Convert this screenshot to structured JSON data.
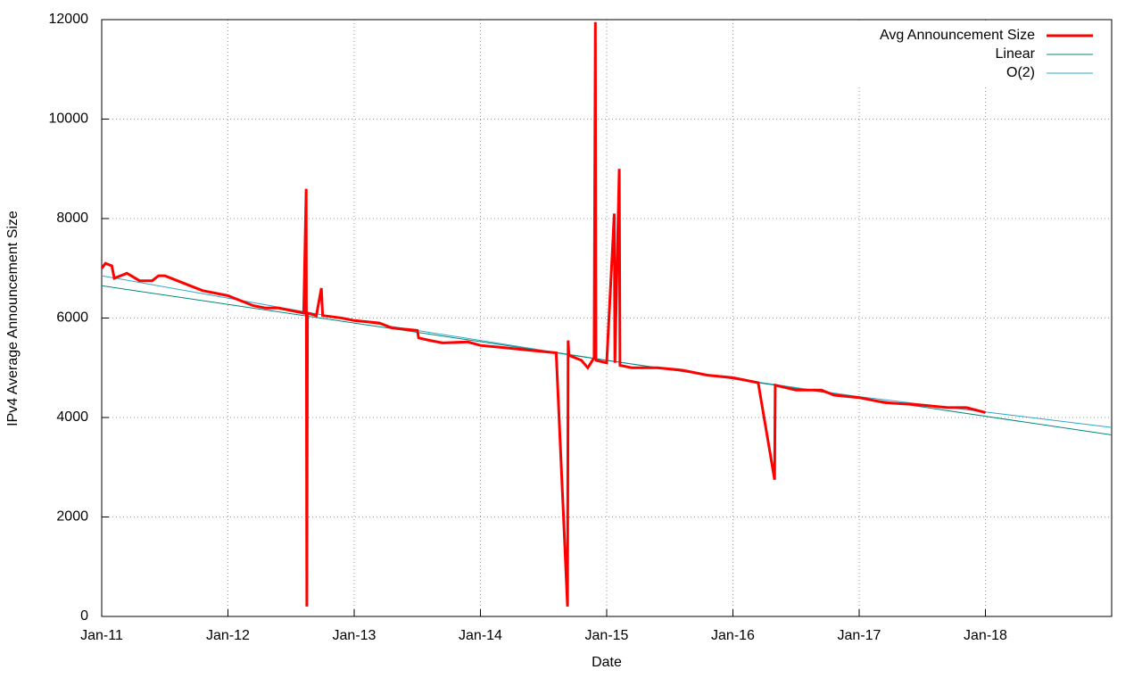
{
  "chart_data": {
    "type": "line",
    "xlabel": "Date",
    "ylabel": "IPv4 Average Announcement Size",
    "xlim": [
      2011,
      2019
    ],
    "xticks": [
      {
        "value": 2011,
        "label": "Jan-11"
      },
      {
        "value": 2012,
        "label": "Jan-12"
      },
      {
        "value": 2013,
        "label": "Jan-13"
      },
      {
        "value": 2014,
        "label": "Jan-14"
      },
      {
        "value": 2015,
        "label": "Jan-15"
      },
      {
        "value": 2016,
        "label": "Jan-16"
      },
      {
        "value": 2017,
        "label": "Jan-17"
      },
      {
        "value": 2018,
        "label": "Jan-18"
      }
    ],
    "ylim": [
      0,
      12000
    ],
    "yticks": [
      0,
      2000,
      4000,
      6000,
      8000,
      10000,
      12000
    ],
    "grid": true,
    "legend": "top-right",
    "series": [
      {
        "name": "Avg Announcement Size",
        "color": "#ff0000",
        "width": 3,
        "x": [
          2011.0,
          2011.03,
          2011.08,
          2011.1,
          2011.2,
          2011.3,
          2011.4,
          2011.45,
          2011.5,
          2011.6,
          2011.7,
          2011.8,
          2011.9,
          2012.0,
          2012.1,
          2012.2,
          2012.3,
          2012.4,
          2012.5,
          2012.6,
          2012.62,
          2012.625,
          2012.63,
          2012.7,
          2012.74,
          2012.75,
          2012.9,
          2013.0,
          2013.2,
          2013.3,
          2013.5,
          2013.51,
          2013.6,
          2013.7,
          2013.9,
          2014.0,
          2014.2,
          2014.4,
          2014.6,
          2014.69,
          2014.695,
          2014.7,
          2014.8,
          2014.85,
          2014.9,
          2014.91,
          2014.915,
          2015.0,
          2015.06,
          2015.065,
          2015.1,
          2015.105,
          2015.2,
          2015.4,
          2015.6,
          2015.8,
          2016.0,
          2016.2,
          2016.33,
          2016.335,
          2016.5,
          2016.7,
          2016.8,
          2017.0,
          2017.2,
          2017.5,
          2017.7,
          2017.85,
          2018.0
        ],
        "values": [
          7000,
          7100,
          7050,
          6800,
          6900,
          6750,
          6750,
          6850,
          6850,
          6750,
          6650,
          6550,
          6500,
          6450,
          6350,
          6250,
          6200,
          6200,
          6150,
          6100,
          8600,
          200,
          6100,
          6050,
          6600,
          6050,
          6000,
          5950,
          5900,
          5800,
          5750,
          5600,
          5550,
          5500,
          5520,
          5450,
          5400,
          5350,
          5300,
          200,
          5550,
          5250,
          5150,
          5000,
          5200,
          11950,
          5150,
          5100,
          8100,
          5100,
          9000,
          5050,
          5000,
          5000,
          4950,
          4850,
          4800,
          4700,
          2750,
          4650,
          4550,
          4550,
          4450,
          4400,
          4300,
          4250,
          4200,
          4200,
          4100
        ]
      },
      {
        "name": "Linear",
        "color": "#00897b",
        "width": 1,
        "x": [
          2011,
          2019
        ],
        "values": [
          6650,
          3650
        ]
      },
      {
        "name": "O(2)",
        "color": "#2fa8c8",
        "width": 1,
        "x": [
          2011,
          2013,
          2015,
          2017,
          2019
        ],
        "values": [
          6850,
          5950,
          5150,
          4420,
          3800
        ]
      }
    ]
  }
}
